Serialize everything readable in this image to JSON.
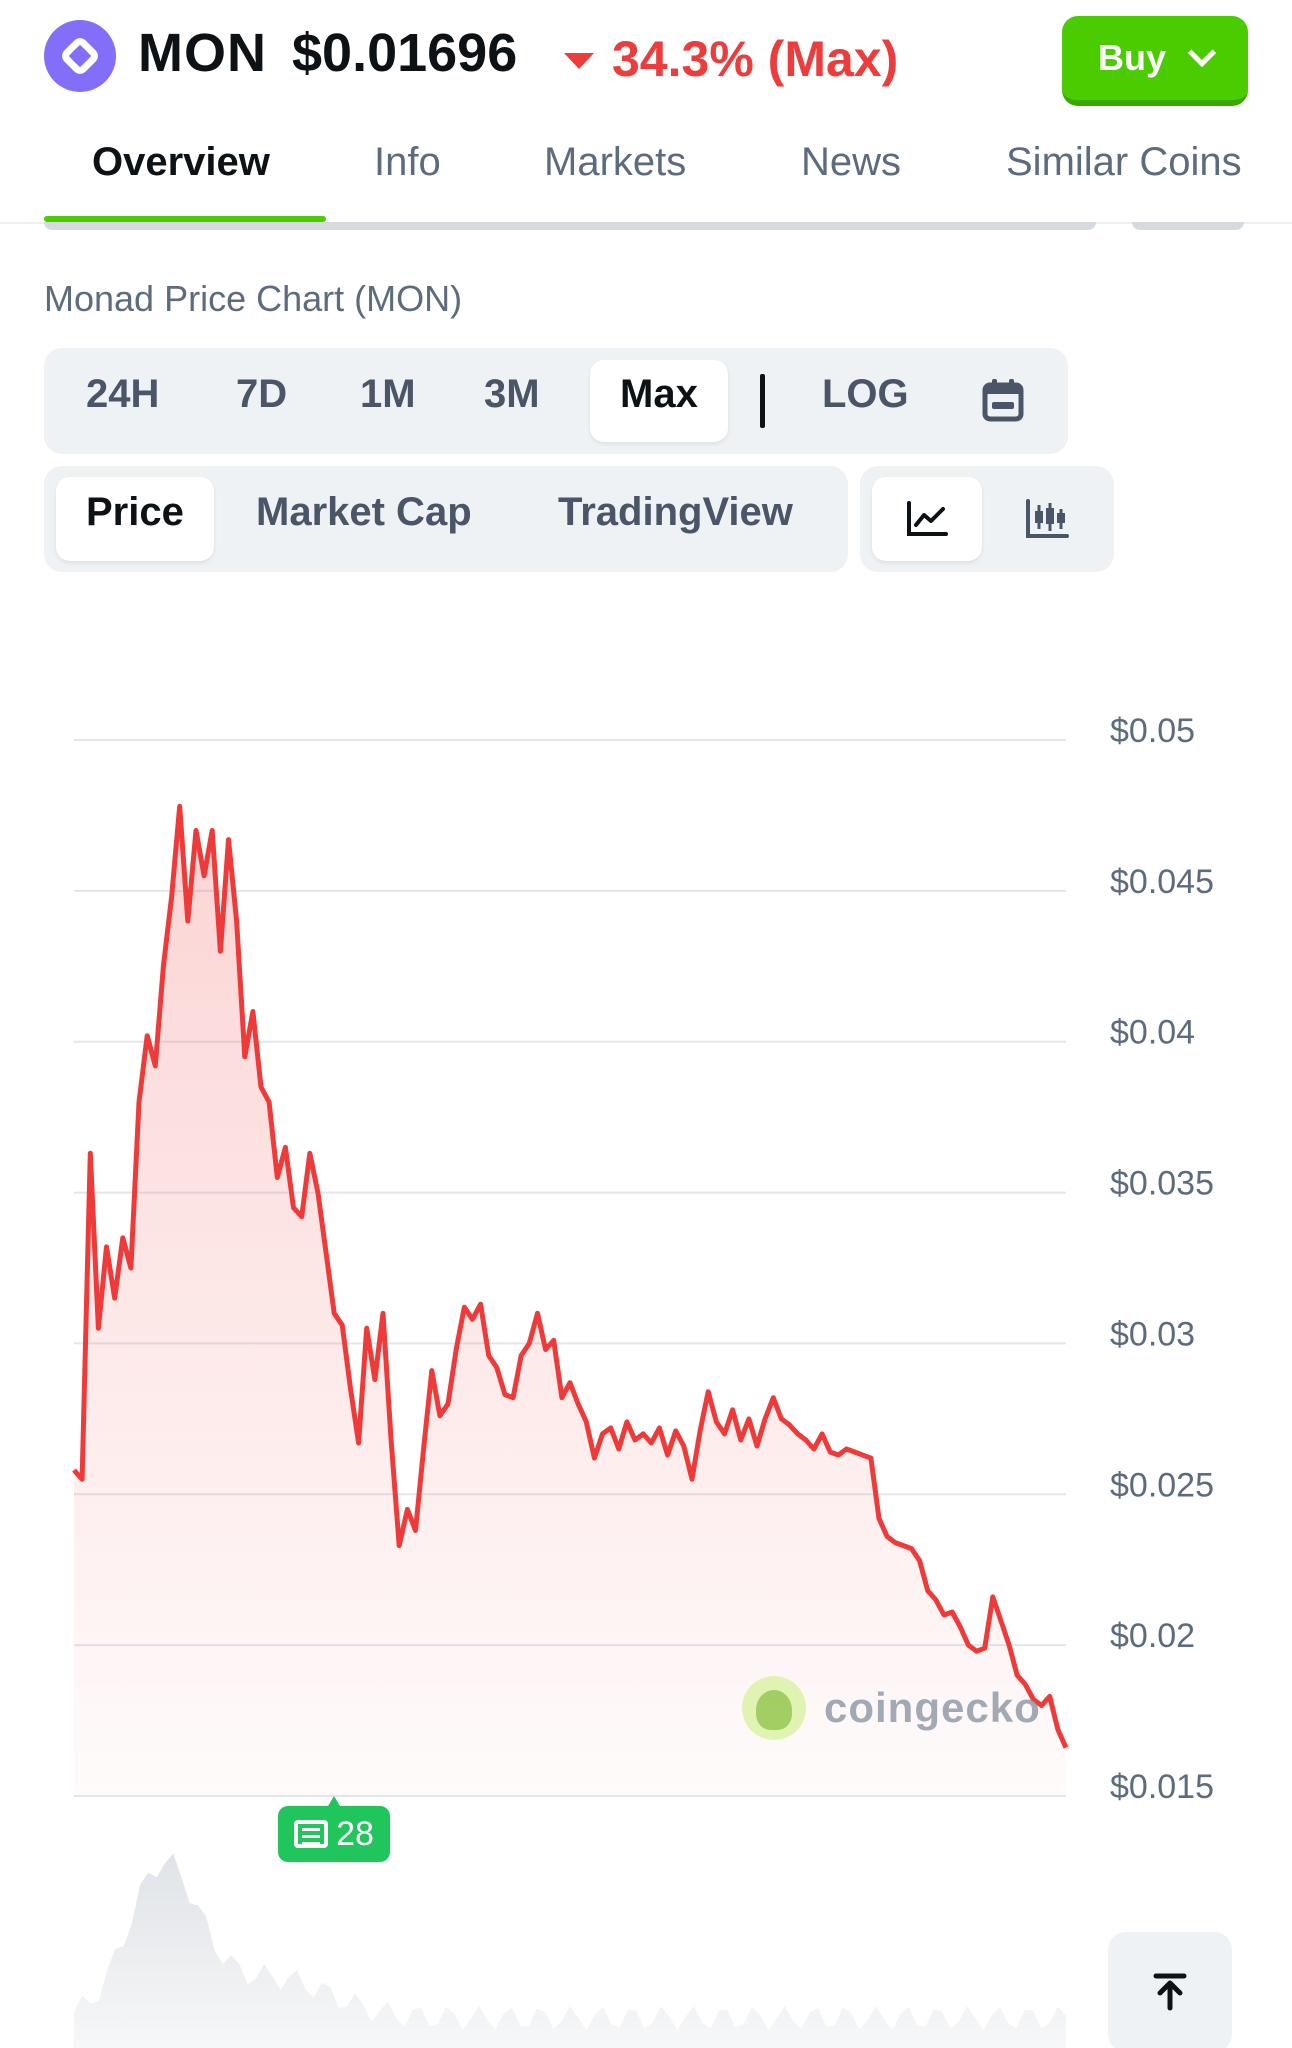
{
  "header": {
    "symbol": "MON",
    "price": "$0.01696",
    "change": "34.3% (Max)",
    "buy_label": "Buy",
    "accent_color": "#4bcc00",
    "down_color": "#ec3c3c",
    "coin_color": "#836ef9"
  },
  "tabs": [
    {
      "label": "Overview",
      "active": true
    },
    {
      "label": "Info"
    },
    {
      "label": "Markets"
    },
    {
      "label": "News"
    },
    {
      "label": "Similar Coins"
    }
  ],
  "chart_section": {
    "title": "Monad Price Chart (MON)",
    "ranges": [
      "24H",
      "7D",
      "1M",
      "3M",
      "Max"
    ],
    "active_range": "Max",
    "log_label": "LOG",
    "metrics": [
      "Price",
      "Market Cap",
      "TradingView"
    ],
    "active_metric": "Price",
    "chart_types": [
      "line-chart-icon",
      "candlestick-icon"
    ],
    "active_type": "line-chart-icon",
    "news_count": "28",
    "watermark": "coingecko"
  },
  "chart_data": {
    "type": "area",
    "title": "",
    "xlabel": "",
    "ylabel": "",
    "ylim": [
      0.015,
      0.05
    ],
    "yticks": [
      "$0.05",
      "$0.045",
      "$0.04",
      "$0.035",
      "$0.03",
      "$0.025",
      "$0.02",
      "$0.015"
    ],
    "ytick_values": [
      0.05,
      0.045,
      0.04,
      0.035,
      0.03,
      0.025,
      0.02,
      0.015
    ],
    "grid": true,
    "line_color": "#ef3a3a",
    "series": [
      {
        "values": [
          0.0258,
          0.0255,
          0.0363,
          0.0305,
          0.0332,
          0.0315,
          0.0335,
          0.0325,
          0.038,
          0.0402,
          0.0392,
          0.0425,
          0.0448,
          0.0478,
          0.044,
          0.047,
          0.0455,
          0.047,
          0.043,
          0.0467,
          0.044,
          0.0395,
          0.041,
          0.0385,
          0.038,
          0.0355,
          0.0365,
          0.0345,
          0.0342,
          0.0363,
          0.035,
          0.033,
          0.031,
          0.0306,
          0.0285,
          0.0267,
          0.0305,
          0.0288,
          0.031,
          0.0268,
          0.0233,
          0.0245,
          0.0238,
          0.0265,
          0.0291,
          0.0276,
          0.028,
          0.0298,
          0.0312,
          0.0308,
          0.0313,
          0.0296,
          0.0292,
          0.0283,
          0.0282,
          0.0296,
          0.03,
          0.031,
          0.0298,
          0.0301,
          0.0282,
          0.0287,
          0.028,
          0.0274,
          0.0262,
          0.027,
          0.0272,
          0.0265,
          0.0274,
          0.0268,
          0.027,
          0.0267,
          0.0272,
          0.0263,
          0.0271,
          0.0266,
          0.0255,
          0.0271,
          0.0284,
          0.0274,
          0.027,
          0.0278,
          0.0268,
          0.0275,
          0.0266,
          0.0275,
          0.0282,
          0.0275,
          0.0273,
          0.027,
          0.0268,
          0.0265,
          0.027,
          0.0264,
          0.0263,
          0.0265,
          0.0264,
          0.0263,
          0.0262,
          0.0242,
          0.0236,
          0.0234,
          0.0233,
          0.0232,
          0.0228,
          0.0218,
          0.0215,
          0.021,
          0.0211,
          0.0206,
          0.02,
          0.0198,
          0.0199,
          0.0216,
          0.0208,
          0.02,
          0.019,
          0.0187,
          0.0182,
          0.018,
          0.0183,
          0.0172,
          0.0166
        ]
      }
    ]
  }
}
